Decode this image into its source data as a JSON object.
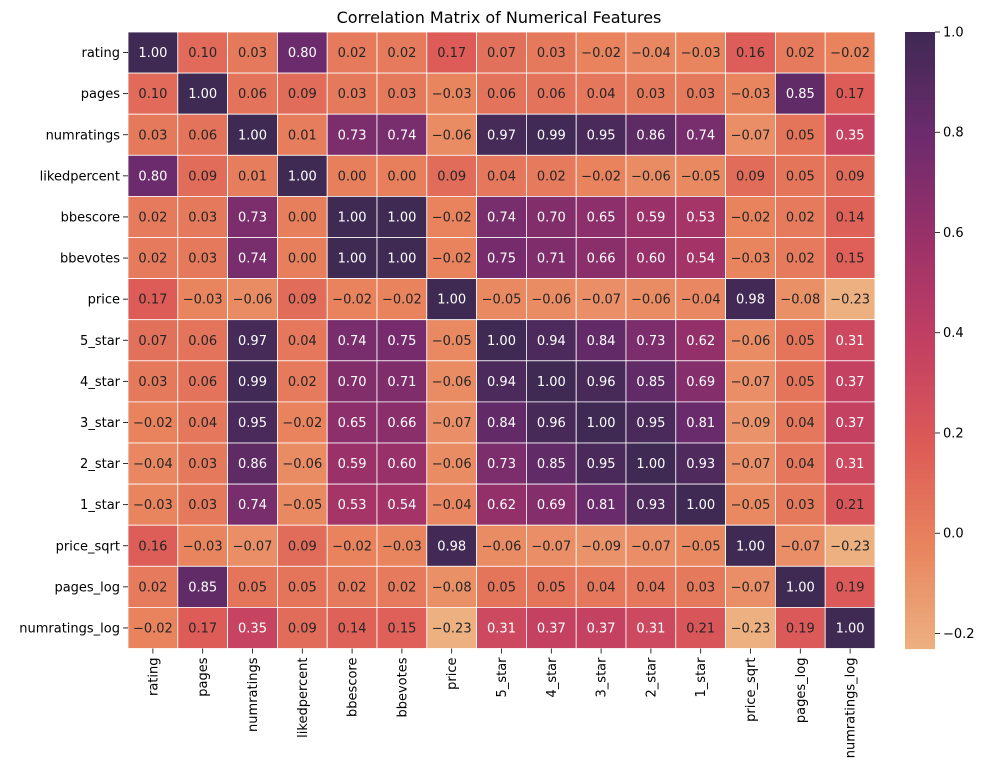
{
  "chart_data": {
    "type": "heatmap",
    "title": "Correlation Matrix of Numerical Features",
    "labels": [
      "rating",
      "pages",
      "numratings",
      "likedpercent",
      "bbescore",
      "bbevotes",
      "price",
      "5_star",
      "4_star",
      "3_star",
      "2_star",
      "1_star",
      "price_sqrt",
      "pages_log",
      "numratings_log"
    ],
    "matrix": [
      [
        "1.00",
        "0.10",
        "0.03",
        "0.80",
        "0.02",
        "0.02",
        "0.17",
        "0.07",
        "0.03",
        "-0.02",
        "-0.04",
        "-0.03",
        "0.16",
        "0.02",
        "-0.02"
      ],
      [
        "0.10",
        "1.00",
        "0.06",
        "0.09",
        "0.03",
        "0.03",
        "-0.03",
        "0.06",
        "0.06",
        "0.04",
        "0.03",
        "0.03",
        "-0.03",
        "0.85",
        "0.17"
      ],
      [
        "0.03",
        "0.06",
        "1.00",
        "0.01",
        "0.73",
        "0.74",
        "-0.06",
        "0.97",
        "0.99",
        "0.95",
        "0.86",
        "0.74",
        "-0.07",
        "0.05",
        "0.35"
      ],
      [
        "0.80",
        "0.09",
        "0.01",
        "1.00",
        "0.00",
        "0.00",
        "0.09",
        "0.04",
        "0.02",
        "-0.02",
        "-0.06",
        "-0.05",
        "0.09",
        "0.05",
        "0.09"
      ],
      [
        "0.02",
        "0.03",
        "0.73",
        "0.00",
        "1.00",
        "1.00",
        "-0.02",
        "0.74",
        "0.70",
        "0.65",
        "0.59",
        "0.53",
        "-0.02",
        "0.02",
        "0.14"
      ],
      [
        "0.02",
        "0.03",
        "0.74",
        "0.00",
        "1.00",
        "1.00",
        "-0.02",
        "0.75",
        "0.71",
        "0.66",
        "0.60",
        "0.54",
        "-0.03",
        "0.02",
        "0.15"
      ],
      [
        "0.17",
        "-0.03",
        "-0.06",
        "0.09",
        "-0.02",
        "-0.02",
        "1.00",
        "-0.05",
        "-0.06",
        "-0.07",
        "-0.06",
        "-0.04",
        "0.98",
        "-0.08",
        "-0.23"
      ],
      [
        "0.07",
        "0.06",
        "0.97",
        "0.04",
        "0.74",
        "0.75",
        "-0.05",
        "1.00",
        "0.94",
        "0.84",
        "0.73",
        "0.62",
        "-0.06",
        "0.05",
        "0.31"
      ],
      [
        "0.03",
        "0.06",
        "0.99",
        "0.02",
        "0.70",
        "0.71",
        "-0.06",
        "0.94",
        "1.00",
        "0.96",
        "0.85",
        "0.69",
        "-0.07",
        "0.05",
        "0.37"
      ],
      [
        "-0.02",
        "0.04",
        "0.95",
        "-0.02",
        "0.65",
        "0.66",
        "-0.07",
        "0.84",
        "0.96",
        "1.00",
        "0.95",
        "0.81",
        "-0.09",
        "0.04",
        "0.37"
      ],
      [
        "-0.04",
        "0.03",
        "0.86",
        "-0.06",
        "0.59",
        "0.60",
        "-0.06",
        "0.73",
        "0.85",
        "0.95",
        "1.00",
        "0.93",
        "-0.07",
        "0.04",
        "0.31"
      ],
      [
        "-0.03",
        "0.03",
        "0.74",
        "-0.05",
        "0.53",
        "0.54",
        "-0.04",
        "0.62",
        "0.69",
        "0.81",
        "0.93",
        "1.00",
        "-0.05",
        "0.03",
        "0.21"
      ],
      [
        "0.16",
        "-0.03",
        "-0.07",
        "0.09",
        "-0.02",
        "-0.03",
        "0.98",
        "-0.06",
        "-0.07",
        "-0.09",
        "-0.07",
        "-0.05",
        "1.00",
        "-0.07",
        "-0.23"
      ],
      [
        "0.02",
        "0.85",
        "0.05",
        "0.05",
        "0.02",
        "0.02",
        "-0.08",
        "0.05",
        "0.05",
        "0.04",
        "0.04",
        "0.03",
        "-0.07",
        "1.00",
        "0.19"
      ],
      [
        "-0.02",
        "0.17",
        "0.35",
        "0.09",
        "0.14",
        "0.15",
        "-0.23",
        "0.31",
        "0.37",
        "0.37",
        "0.31",
        "0.21",
        "-0.23",
        "0.19",
        "1.00"
      ]
    ],
    "vmin": -0.23,
    "vmax": 1.0,
    "colorbar_ticks": [
      "1.0",
      "0.8",
      "0.6",
      "0.4",
      "0.2",
      "0.0",
      "−0.2"
    ],
    "colormap": [
      "#edb081",
      "#e8845e",
      "#dc5a57",
      "#c23f63",
      "#9a3169",
      "#6c2b6d",
      "#3f2a54"
    ],
    "grid_color": "#ffffff"
  }
}
